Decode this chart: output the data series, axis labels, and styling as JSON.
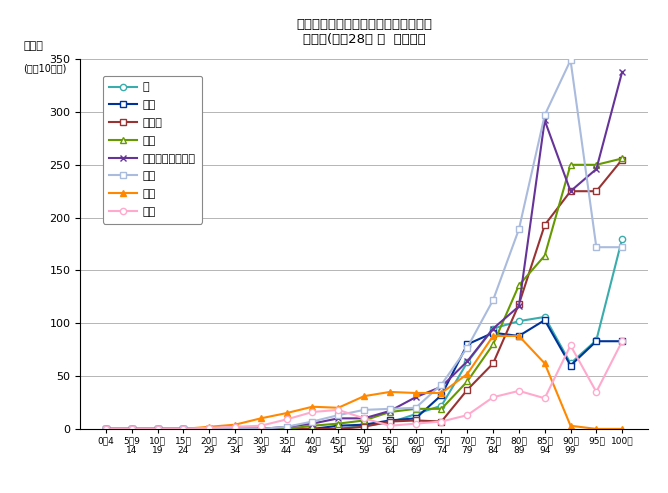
{
  "title_line1": "部位別にみた悪性新生物の年齢階級別",
  "title_line2": "死亡率(平成28年 女  熊本県）",
  "ylabel_line1": "死亡率",
  "ylabel_line2": "(人口10万対)",
  "ylim": [
    0,
    350
  ],
  "yticks": [
    0,
    50,
    100,
    150,
    200,
    250,
    300,
    350
  ],
  "x_labels_top": [
    "0～4",
    "5～9",
    "10～",
    "15～",
    "20～",
    "25～",
    "30～",
    "35～",
    "40～",
    "45～",
    "50～",
    "55～",
    "60～",
    "65～",
    "70～",
    "75～",
    "80～",
    "85～",
    "90～",
    "95～",
    "100～"
  ],
  "x_labels_bot": [
    "",
    "14",
    "19",
    "24",
    "29",
    "34",
    "39",
    "44",
    "49",
    "54",
    "59",
    "64",
    "69",
    "74",
    "79",
    "84",
    "89",
    "94",
    "99",
    "",
    ""
  ],
  "series": [
    {
      "name": "胃",
      "color": "#3AACAC",
      "marker": "o",
      "mfc": "white",
      "lw": 1.5,
      "values": [
        0,
        0,
        0,
        0,
        0,
        0,
        0,
        0,
        0,
        0,
        3,
        6,
        14,
        22,
        63,
        95,
        102,
        106,
        62,
        84,
        180
      ]
    },
    {
      "name": "肝臓",
      "color": "#003399",
      "marker": "s",
      "mfc": "white",
      "lw": 1.5,
      "values": [
        0,
        0,
        0,
        0,
        0,
        0,
        0,
        0,
        0,
        3,
        4,
        8,
        10,
        32,
        80,
        91,
        88,
        103,
        60,
        83,
        83
      ]
    },
    {
      "name": "胆のう",
      "color": "#993333",
      "marker": "s",
      "mfc": "white",
      "lw": 1.5,
      "values": [
        0,
        0,
        0,
        0,
        0,
        0,
        0,
        0,
        0,
        0,
        2,
        7,
        8,
        7,
        37,
        62,
        118,
        193,
        225,
        225,
        255
      ]
    },
    {
      "name": "膵臓",
      "color": "#669900",
      "marker": "^",
      "mfc": "white",
      "lw": 1.5,
      "values": [
        0,
        0,
        0,
        0,
        0,
        0,
        0,
        0,
        3,
        5,
        8,
        16,
        19,
        19,
        45,
        80,
        136,
        164,
        250,
        250,
        256
      ]
    },
    {
      "name": "気管・気管支・肺",
      "color": "#663399",
      "marker": "x",
      "mfc": "#663399",
      "lw": 1.5,
      "values": [
        0,
        0,
        0,
        0,
        0,
        0,
        0,
        2,
        5,
        10,
        10,
        17,
        30,
        40,
        64,
        95,
        116,
        292,
        225,
        246,
        338
      ]
    },
    {
      "name": "大腸",
      "color": "#AABBDD",
      "marker": "s",
      "mfc": "white",
      "lw": 1.5,
      "values": [
        0,
        0,
        0,
        0,
        0,
        0,
        0,
        2,
        7,
        13,
        18,
        19,
        20,
        42,
        77,
        122,
        189,
        297,
        349,
        172,
        172
      ]
    },
    {
      "name": "乳房",
      "color": "#FF8800",
      "marker": "^",
      "mfc": "#FF8800",
      "lw": 1.5,
      "values": [
        0,
        0,
        0,
        0,
        2,
        4,
        10,
        15,
        21,
        20,
        31,
        35,
        34,
        34,
        52,
        88,
        88,
        62,
        3,
        0,
        0
      ]
    },
    {
      "name": "子宮",
      "color": "#FFAACC",
      "marker": "o",
      "mfc": "white",
      "lw": 1.5,
      "values": [
        0,
        0,
        0,
        0,
        1,
        2,
        3,
        9,
        16,
        18,
        10,
        3,
        5,
        7,
        13,
        30,
        36,
        29,
        79,
        35,
        83
      ]
    }
  ]
}
